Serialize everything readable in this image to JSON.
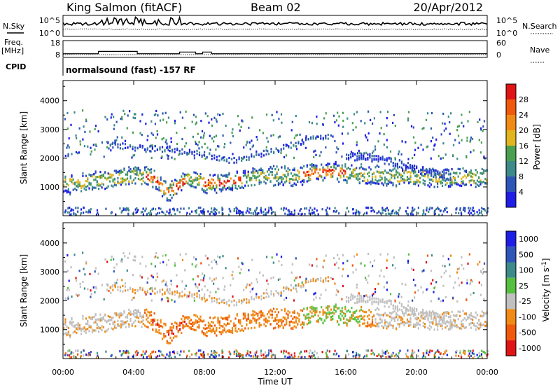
{
  "header": {
    "station": "King Salmon (fitACF)",
    "beam": "Beam 02",
    "date": "20/Apr/2012"
  },
  "summary_panels": {
    "nsky_label": "N.Sky",
    "nsearch_label": "N.Search",
    "noise_ticks": [
      "10^5",
      "10^0"
    ],
    "freq_label": "Freq.",
    "freq_unit": "[MHz]",
    "freq_ticks": [
      "18",
      "8"
    ],
    "nave_label": "Nave",
    "nave_ticks": [
      "60",
      "0"
    ],
    "cpid_label": "CPID",
    "cpid_text": "normalsound (fast) -157 RF"
  },
  "colors": {
    "power_scale": [
      "#1e1ee6",
      "#2e55b8",
      "#3d8a8a",
      "#4aa050",
      "#e2b41e",
      "#f08a14",
      "#f05a0a",
      "#e01414"
    ],
    "velocity_scale": [
      "#1e1ee6",
      "#2e55b8",
      "#3d8a8a",
      "#55c040",
      "#c0c0c0",
      "#f08a14",
      "#f05a0a",
      "#e01414"
    ]
  },
  "chart_data": [
    {
      "type": "line",
      "panel": "noise",
      "series": [
        {
          "name": "N.Sky"
        },
        {
          "name": "N.Search"
        }
      ],
      "yscale": "log",
      "yticks": [
        "10^5",
        "10^0"
      ],
      "xlim": [
        "00:00",
        "24:00"
      ]
    },
    {
      "type": "line",
      "panel": "frequency-nave",
      "ylabel_left": "Freq. [MHz]",
      "ylabel_right": "Nave",
      "left_ticks": [
        18,
        8
      ],
      "right_ticks": [
        60,
        0
      ],
      "freq_steps": [
        {
          "t0": 0.0,
          "t1": 2.0,
          "v": 10.2
        },
        {
          "t0": 2.0,
          "t1": 4.2,
          "v": 11.6
        },
        {
          "t0": 4.2,
          "t1": 6.6,
          "v": 10.2
        },
        {
          "t0": 6.6,
          "t1": 7.5,
          "v": 11.2
        },
        {
          "t0": 7.5,
          "t1": 7.9,
          "v": 10.2
        },
        {
          "t0": 7.9,
          "t1": 8.4,
          "v": 11.2
        },
        {
          "t0": 8.4,
          "t1": 24.0,
          "v": 10.2
        }
      ]
    },
    {
      "type": "heatmap",
      "panel": "power",
      "ylabel": "Slant Range [km]",
      "ylim": [
        0,
        4700
      ],
      "yticks": [
        1000,
        2000,
        3000,
        4000
      ],
      "colorbar_label": "Power [dB]",
      "colorbar_ticks": [
        4,
        8,
        12,
        16,
        20,
        24,
        28
      ],
      "main_band": [
        {
          "t": 0,
          "km": 1130
        },
        {
          "t": 1,
          "km": 1160
        },
        {
          "t": 2,
          "km": 1260
        },
        {
          "t": 3,
          "km": 1340
        },
        {
          "t": 4,
          "km": 1420
        },
        {
          "t": 5,
          "km": 1370
        },
        {
          "t": 5.9,
          "km": 850
        },
        {
          "t": 6.5,
          "km": 1080
        },
        {
          "t": 7,
          "km": 1350
        },
        {
          "t": 8,
          "km": 1150
        },
        {
          "t": 9,
          "km": 1180
        },
        {
          "t": 10,
          "km": 1260
        },
        {
          "t": 11,
          "km": 1400
        },
        {
          "t": 12,
          "km": 1450
        },
        {
          "t": 13,
          "km": 1400
        },
        {
          "t": 14,
          "km": 1520
        },
        {
          "t": 15,
          "km": 1580
        },
        {
          "t": 16,
          "km": 1520
        },
        {
          "t": 17,
          "km": 1450
        },
        {
          "t": 18,
          "km": 1400
        },
        {
          "t": 19,
          "km": 1400
        },
        {
          "t": 20,
          "km": 1380
        },
        {
          "t": 22,
          "km": 1350
        },
        {
          "t": 24,
          "km": 1380
        }
      ],
      "upper_band": [
        {
          "t": 2.5,
          "km": 2520
        },
        {
          "t": 4,
          "km": 2400
        },
        {
          "t": 6,
          "km": 2350
        },
        {
          "t": 8,
          "km": 2150
        },
        {
          "t": 9.5,
          "km": 1950
        },
        {
          "t": 11,
          "km": 2150
        },
        {
          "t": 12.5,
          "km": 2420
        },
        {
          "t": 14,
          "km": 2700
        },
        {
          "t": 15,
          "km": 2800
        }
      ],
      "arc_band": [
        {
          "t": 16,
          "km": 2100
        },
        {
          "t": 17.5,
          "km": 2050
        },
        {
          "t": 19,
          "km": 1850
        },
        {
          "t": 20,
          "km": 1650
        },
        {
          "t": 21,
          "km": 1500
        },
        {
          "t": 22,
          "km": 1380
        }
      ]
    },
    {
      "type": "heatmap",
      "panel": "velocity",
      "ylabel": "Slant Range [km]",
      "ylim": [
        0,
        4700
      ],
      "yticks": [
        1000,
        2000,
        3000,
        4000
      ],
      "colorbar_label": "Velocity [m s^-1]",
      "colorbar_ticks": [
        1000,
        500,
        100,
        25,
        -25,
        -100,
        -500,
        -1000
      ],
      "xlabel": "Time UT",
      "xticks": [
        "00:00",
        "04:00",
        "08:00",
        "12:00",
        "16:00",
        "20:00",
        "00:00"
      ]
    }
  ]
}
